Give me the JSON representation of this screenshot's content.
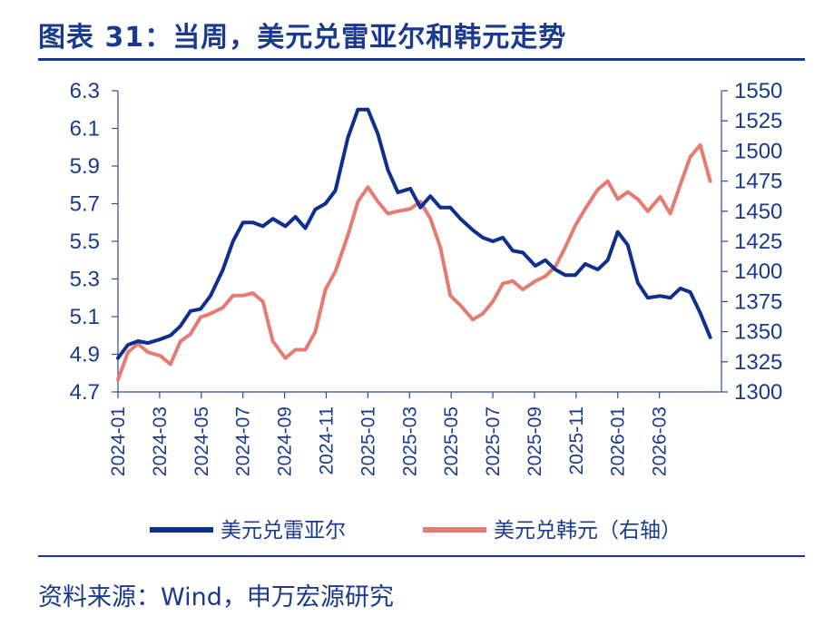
{
  "header": {
    "title": "图表 31：当周，美元兑雷亚尔和韩元走势"
  },
  "footer": {
    "source": "资料来源：Wind，申万宏源研究"
  },
  "chart_data": {
    "type": "line",
    "title": "",
    "grid": false,
    "legend_position": "bottom",
    "x_tick_labels": [
      "2024-01",
      "2024-03",
      "2024-05",
      "2024-07",
      "2024-09",
      "2024-11",
      "2025-01",
      "2025-03",
      "2025-05",
      "2025-07",
      "2025-09",
      "2025-11",
      "2026-01",
      "2026-03"
    ],
    "x_range": [
      2024.0,
      2026.375
    ],
    "y_left": {
      "range": [
        4.7,
        6.3
      ],
      "ticks": [
        "4.7",
        "4.9",
        "5.1",
        "5.3",
        "5.5",
        "5.7",
        "5.9",
        "6.1",
        "6.3"
      ]
    },
    "y_right": {
      "range": [
        1300,
        1550
      ],
      "ticks": [
        "1300",
        "1325",
        "1350",
        "1375",
        "1400",
        "1425",
        "1450",
        "1475",
        "1500",
        "1525",
        "1550"
      ]
    },
    "series": [
      {
        "name": "美元兑雷亚尔",
        "axis": "left",
        "color": "#0f2f8f",
        "x": [
          2024.0,
          2024.04,
          2024.08,
          2024.12,
          2024.17,
          2024.21,
          2024.25,
          2024.29,
          2024.33,
          2024.37,
          2024.42,
          2024.46,
          2024.5,
          2024.54,
          2024.58,
          2024.62,
          2024.67,
          2024.71,
          2024.75,
          2024.79,
          2024.83,
          2024.87,
          2024.92,
          2024.96,
          2025.0,
          2025.04,
          2025.08,
          2025.12,
          2025.17,
          2025.21,
          2025.25,
          2025.29,
          2025.33,
          2025.37,
          2025.42,
          2025.46,
          2025.5,
          2025.54,
          2025.58,
          2025.62,
          2025.67,
          2025.71,
          2025.75,
          2025.79,
          2025.83,
          2025.87,
          2025.92,
          2025.96,
          2026.0,
          2026.04,
          2026.08,
          2026.12,
          2026.17,
          2026.21,
          2026.25,
          2026.29,
          2026.33,
          2026.37
        ],
        "y": [
          4.88,
          4.95,
          4.97,
          4.96,
          4.98,
          5.0,
          5.05,
          5.13,
          5.14,
          5.21,
          5.35,
          5.5,
          5.6,
          5.6,
          5.58,
          5.62,
          5.58,
          5.63,
          5.57,
          5.67,
          5.7,
          5.77,
          6.05,
          6.2,
          6.2,
          6.07,
          5.88,
          5.76,
          5.78,
          5.68,
          5.74,
          5.68,
          5.68,
          5.62,
          5.56,
          5.52,
          5.5,
          5.52,
          5.45,
          5.44,
          5.37,
          5.4,
          5.35,
          5.32,
          5.32,
          5.38,
          5.35,
          5.4,
          5.55,
          5.48,
          5.28,
          5.2,
          5.21,
          5.2,
          5.25,
          5.23,
          5.12,
          4.99
        ]
      },
      {
        "name": "美元兑韩元（右轴）",
        "axis": "right",
        "color": "#e47c72",
        "x": [
          2024.0,
          2024.04,
          2024.08,
          2024.12,
          2024.17,
          2024.21,
          2024.25,
          2024.29,
          2024.33,
          2024.37,
          2024.42,
          2024.46,
          2024.5,
          2024.54,
          2024.58,
          2024.62,
          2024.67,
          2024.71,
          2024.75,
          2024.79,
          2024.83,
          2024.87,
          2024.92,
          2024.96,
          2025.0,
          2025.04,
          2025.08,
          2025.12,
          2025.17,
          2025.21,
          2025.25,
          2025.29,
          2025.33,
          2025.37,
          2025.42,
          2025.46,
          2025.5,
          2025.54,
          2025.58,
          2025.62,
          2025.67,
          2025.71,
          2025.75,
          2025.79,
          2025.83,
          2025.87,
          2025.92,
          2025.96,
          2026.0,
          2026.04,
          2026.08,
          2026.12,
          2026.17,
          2026.21,
          2026.25,
          2026.29,
          2026.33,
          2026.37
        ],
        "y": [
          1310,
          1333,
          1340,
          1333,
          1330,
          1323,
          1342,
          1348,
          1362,
          1365,
          1370,
          1380,
          1380,
          1382,
          1375,
          1342,
          1328,
          1335,
          1335,
          1350,
          1385,
          1400,
          1430,
          1458,
          1470,
          1458,
          1448,
          1450,
          1452,
          1458,
          1444,
          1420,
          1380,
          1372,
          1360,
          1365,
          1375,
          1390,
          1392,
          1385,
          1392,
          1396,
          1404,
          1420,
          1438,
          1452,
          1468,
          1475,
          1460,
          1466,
          1460,
          1450,
          1462,
          1448,
          1472,
          1495,
          1505,
          1475
        ]
      }
    ]
  }
}
